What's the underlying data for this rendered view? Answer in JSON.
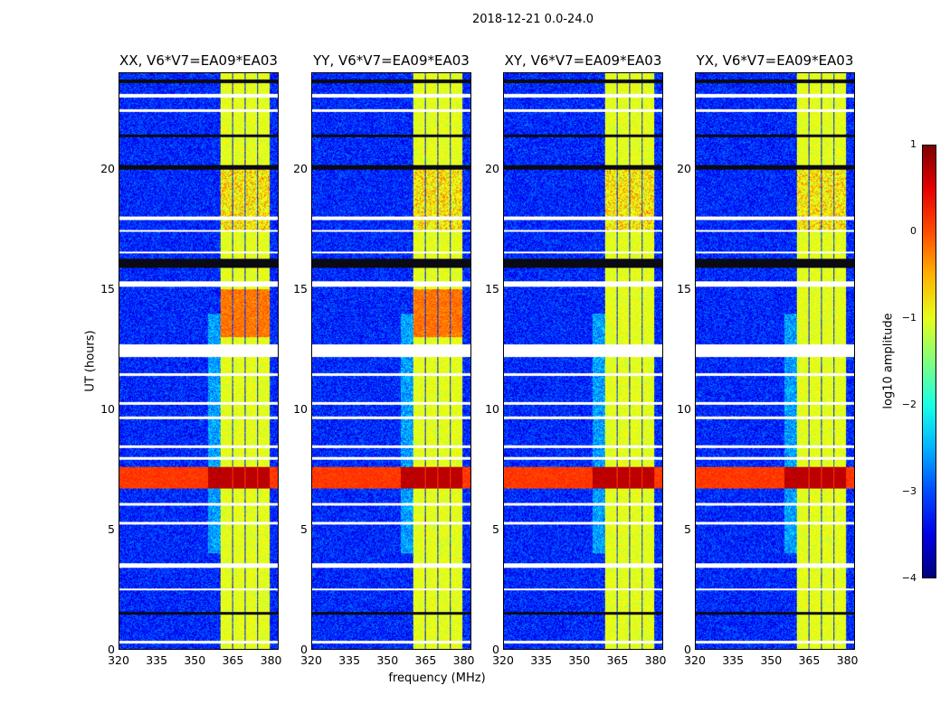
{
  "title": "2018-12-21 0.0-24.0",
  "chart_data": {
    "type": "heatmap",
    "xlabel": "frequency (MHz)",
    "ylabel": "UT (hours)",
    "xlim": [
      320,
      383
    ],
    "ylim": [
      0,
      24
    ],
    "xticks": [
      "320",
      "335",
      "350",
      "365",
      "380"
    ],
    "yticks": [
      "0",
      "5",
      "10",
      "15",
      "20"
    ],
    "panels": [
      {
        "title": "XX, V6*V7=EA09*EA03"
      },
      {
        "title": "YY, V6*V7=EA09*EA03"
      },
      {
        "title": "XY, V6*V7=EA09*EA03"
      },
      {
        "title": "YX, V6*V7=EA09*EA03"
      }
    ],
    "bright_channel_blocks_mhz": [
      [
        360,
        364.5
      ],
      [
        365,
        369.5
      ],
      [
        370,
        374.5
      ],
      [
        375,
        379.5
      ]
    ],
    "flagged_hours": [
      [
        23.0,
        23.15
      ],
      [
        22.4,
        22.5
      ],
      [
        17.9,
        18.05
      ],
      [
        17.4,
        17.5
      ],
      [
        16.5,
        16.6
      ],
      [
        15.1,
        15.35
      ],
      [
        12.2,
        12.7
      ],
      [
        11.4,
        11.5
      ],
      [
        10.2,
        10.3
      ],
      [
        9.6,
        9.7
      ],
      [
        8.4,
        8.5
      ],
      [
        7.9,
        8.0
      ],
      [
        6.0,
        6.1
      ],
      [
        5.2,
        5.3
      ],
      [
        3.4,
        3.6
      ],
      [
        2.45,
        2.55
      ],
      [
        0.25,
        0.35
      ]
    ],
    "dark_hours": [
      [
        23.6,
        23.75
      ],
      [
        21.35,
        21.45
      ],
      [
        20.0,
        20.2
      ],
      [
        15.9,
        16.3
      ],
      [
        1.45,
        1.55
      ]
    ],
    "strong_hours": [
      6.7,
      7.6
    ],
    "background_log_amp": -3.2,
    "block_log_amp": -1.0,
    "colorbar": {
      "label": "log10 amplitude",
      "range": [
        -4,
        1
      ],
      "ticks": [
        "1",
        "0",
        "−1",
        "−2",
        "−3",
        "−4"
      ],
      "cmap": "jet"
    }
  }
}
